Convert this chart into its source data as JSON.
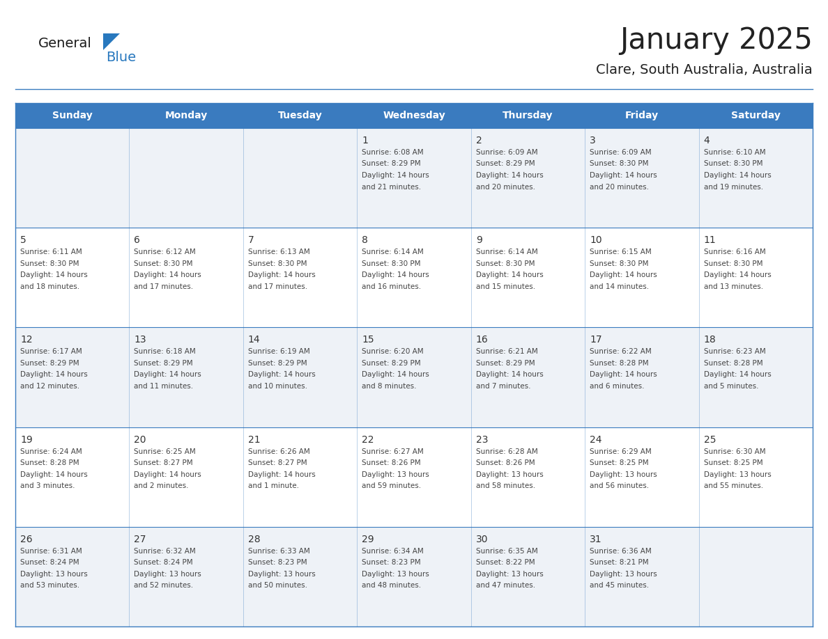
{
  "title": "January 2025",
  "subtitle": "Clare, South Australia, Australia",
  "header_color": "#3a7bbf",
  "header_text_color": "#ffffff",
  "cell_bg_row0": "#eef2f7",
  "cell_bg_row1": "#ffffff",
  "border_color": "#3a7bbf",
  "day_names": [
    "Sunday",
    "Monday",
    "Tuesday",
    "Wednesday",
    "Thursday",
    "Friday",
    "Saturday"
  ],
  "title_color": "#222222",
  "day_number_color": "#333333",
  "cell_text_color": "#444444",
  "logo_general_color": "#1a1a1a",
  "logo_blue_color": "#2878be",
  "calendar": [
    [
      {
        "day": "",
        "sunrise": "",
        "sunset": "",
        "daylight": ""
      },
      {
        "day": "",
        "sunrise": "",
        "sunset": "",
        "daylight": ""
      },
      {
        "day": "",
        "sunrise": "",
        "sunset": "",
        "daylight": ""
      },
      {
        "day": "1",
        "sunrise": "6:08 AM",
        "sunset": "8:29 PM",
        "daylight": "14 hours\nand 21 minutes."
      },
      {
        "day": "2",
        "sunrise": "6:09 AM",
        "sunset": "8:29 PM",
        "daylight": "14 hours\nand 20 minutes."
      },
      {
        "day": "3",
        "sunrise": "6:09 AM",
        "sunset": "8:30 PM",
        "daylight": "14 hours\nand 20 minutes."
      },
      {
        "day": "4",
        "sunrise": "6:10 AM",
        "sunset": "8:30 PM",
        "daylight": "14 hours\nand 19 minutes."
      }
    ],
    [
      {
        "day": "5",
        "sunrise": "6:11 AM",
        "sunset": "8:30 PM",
        "daylight": "14 hours\nand 18 minutes."
      },
      {
        "day": "6",
        "sunrise": "6:12 AM",
        "sunset": "8:30 PM",
        "daylight": "14 hours\nand 17 minutes."
      },
      {
        "day": "7",
        "sunrise": "6:13 AM",
        "sunset": "8:30 PM",
        "daylight": "14 hours\nand 17 minutes."
      },
      {
        "day": "8",
        "sunrise": "6:14 AM",
        "sunset": "8:30 PM",
        "daylight": "14 hours\nand 16 minutes."
      },
      {
        "day": "9",
        "sunrise": "6:14 AM",
        "sunset": "8:30 PM",
        "daylight": "14 hours\nand 15 minutes."
      },
      {
        "day": "10",
        "sunrise": "6:15 AM",
        "sunset": "8:30 PM",
        "daylight": "14 hours\nand 14 minutes."
      },
      {
        "day": "11",
        "sunrise": "6:16 AM",
        "sunset": "8:30 PM",
        "daylight": "14 hours\nand 13 minutes."
      }
    ],
    [
      {
        "day": "12",
        "sunrise": "6:17 AM",
        "sunset": "8:29 PM",
        "daylight": "14 hours\nand 12 minutes."
      },
      {
        "day": "13",
        "sunrise": "6:18 AM",
        "sunset": "8:29 PM",
        "daylight": "14 hours\nand 11 minutes."
      },
      {
        "day": "14",
        "sunrise": "6:19 AM",
        "sunset": "8:29 PM",
        "daylight": "14 hours\nand 10 minutes."
      },
      {
        "day": "15",
        "sunrise": "6:20 AM",
        "sunset": "8:29 PM",
        "daylight": "14 hours\nand 8 minutes."
      },
      {
        "day": "16",
        "sunrise": "6:21 AM",
        "sunset": "8:29 PM",
        "daylight": "14 hours\nand 7 minutes."
      },
      {
        "day": "17",
        "sunrise": "6:22 AM",
        "sunset": "8:28 PM",
        "daylight": "14 hours\nand 6 minutes."
      },
      {
        "day": "18",
        "sunrise": "6:23 AM",
        "sunset": "8:28 PM",
        "daylight": "14 hours\nand 5 minutes."
      }
    ],
    [
      {
        "day": "19",
        "sunrise": "6:24 AM",
        "sunset": "8:28 PM",
        "daylight": "14 hours\nand 3 minutes."
      },
      {
        "day": "20",
        "sunrise": "6:25 AM",
        "sunset": "8:27 PM",
        "daylight": "14 hours\nand 2 minutes."
      },
      {
        "day": "21",
        "sunrise": "6:26 AM",
        "sunset": "8:27 PM",
        "daylight": "14 hours\nand 1 minute."
      },
      {
        "day": "22",
        "sunrise": "6:27 AM",
        "sunset": "8:26 PM",
        "daylight": "13 hours\nand 59 minutes."
      },
      {
        "day": "23",
        "sunrise": "6:28 AM",
        "sunset": "8:26 PM",
        "daylight": "13 hours\nand 58 minutes."
      },
      {
        "day": "24",
        "sunrise": "6:29 AM",
        "sunset": "8:25 PM",
        "daylight": "13 hours\nand 56 minutes."
      },
      {
        "day": "25",
        "sunrise": "6:30 AM",
        "sunset": "8:25 PM",
        "daylight": "13 hours\nand 55 minutes."
      }
    ],
    [
      {
        "day": "26",
        "sunrise": "6:31 AM",
        "sunset": "8:24 PM",
        "daylight": "13 hours\nand 53 minutes."
      },
      {
        "day": "27",
        "sunrise": "6:32 AM",
        "sunset": "8:24 PM",
        "daylight": "13 hours\nand 52 minutes."
      },
      {
        "day": "28",
        "sunrise": "6:33 AM",
        "sunset": "8:23 PM",
        "daylight": "13 hours\nand 50 minutes."
      },
      {
        "day": "29",
        "sunrise": "6:34 AM",
        "sunset": "8:23 PM",
        "daylight": "13 hours\nand 48 minutes."
      },
      {
        "day": "30",
        "sunrise": "6:35 AM",
        "sunset": "8:22 PM",
        "daylight": "13 hours\nand 47 minutes."
      },
      {
        "day": "31",
        "sunrise": "6:36 AM",
        "sunset": "8:21 PM",
        "daylight": "13 hours\nand 45 minutes."
      },
      {
        "day": "",
        "sunrise": "",
        "sunset": "",
        "daylight": ""
      }
    ]
  ]
}
